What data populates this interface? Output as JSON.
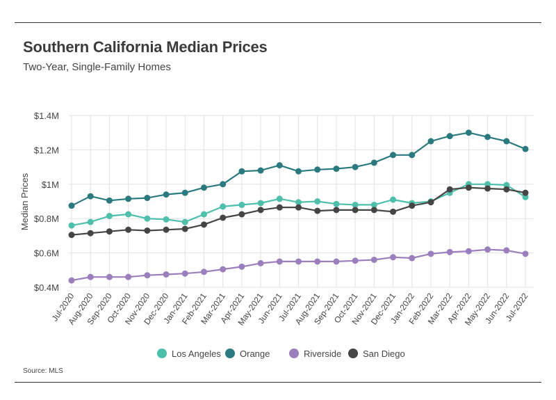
{
  "header": {
    "title": "Southern California Median Prices",
    "subtitle": "Two-Year, Single-Family Homes"
  },
  "footer": {
    "source": "Source:  MLS"
  },
  "chart_data": {
    "type": "line",
    "ylabel": "Median Prices",
    "ylim": [
      0.4,
      1.4
    ],
    "yticks": [
      {
        "value": 0.4,
        "label": "$0.4M"
      },
      {
        "value": 0.6,
        "label": "$0.6M"
      },
      {
        "value": 0.8,
        "label": "$0.8M"
      },
      {
        "value": 1.0,
        "label": "$1M"
      },
      {
        "value": 1.2,
        "label": "$1.2M"
      },
      {
        "value": 1.4,
        "label": "$1.4M"
      }
    ],
    "grid": true,
    "legend_position": "bottom-center",
    "categories": [
      "Jul-2020",
      "Aug-2020",
      "Sep-2020",
      "Oct-2020",
      "Nov-2020",
      "Dec-2020",
      "Jan-2021",
      "Feb-2021",
      "Mar-2021",
      "Apr-2021",
      "May-2021",
      "Jun-2021",
      "Jul-2021",
      "Aug-2021",
      "Sep-2021",
      "Oct-2021",
      "Nov-2021",
      "Dec-2021",
      "Jan-2022",
      "Feb-2022",
      "Mar-2022",
      "Apr-2022",
      "May-2022",
      "Jun-2022",
      "Jul-2022"
    ],
    "series": [
      {
        "name": "Los Angeles",
        "color": "#4dbfaa",
        "values": [
          0.76,
          0.78,
          0.815,
          0.825,
          0.8,
          0.795,
          0.78,
          0.825,
          0.87,
          0.88,
          0.89,
          0.915,
          0.895,
          0.9,
          0.885,
          0.88,
          0.88,
          0.91,
          0.89,
          0.9,
          0.95,
          1.0,
          1.0,
          0.995,
          0.925
        ]
      },
      {
        "name": "Orange",
        "color": "#2a7a80",
        "values": [
          0.875,
          0.93,
          0.905,
          0.915,
          0.92,
          0.94,
          0.95,
          0.98,
          1.0,
          1.075,
          1.08,
          1.11,
          1.075,
          1.085,
          1.09,
          1.1,
          1.125,
          1.17,
          1.17,
          1.25,
          1.28,
          1.3,
          1.275,
          1.25,
          1.205
        ]
      },
      {
        "name": "Riverside",
        "color": "#9b7fbd",
        "values": [
          0.44,
          0.46,
          0.46,
          0.46,
          0.47,
          0.475,
          0.48,
          0.49,
          0.505,
          0.52,
          0.54,
          0.55,
          0.55,
          0.55,
          0.55,
          0.555,
          0.56,
          0.575,
          0.57,
          0.595,
          0.605,
          0.61,
          0.62,
          0.615,
          0.595
        ]
      },
      {
        "name": "San Diego",
        "color": "#454545",
        "values": [
          0.705,
          0.715,
          0.725,
          0.735,
          0.73,
          0.735,
          0.74,
          0.765,
          0.805,
          0.825,
          0.85,
          0.865,
          0.865,
          0.845,
          0.85,
          0.85,
          0.85,
          0.84,
          0.875,
          0.895,
          0.97,
          0.98,
          0.975,
          0.97,
          0.95
        ]
      }
    ]
  }
}
